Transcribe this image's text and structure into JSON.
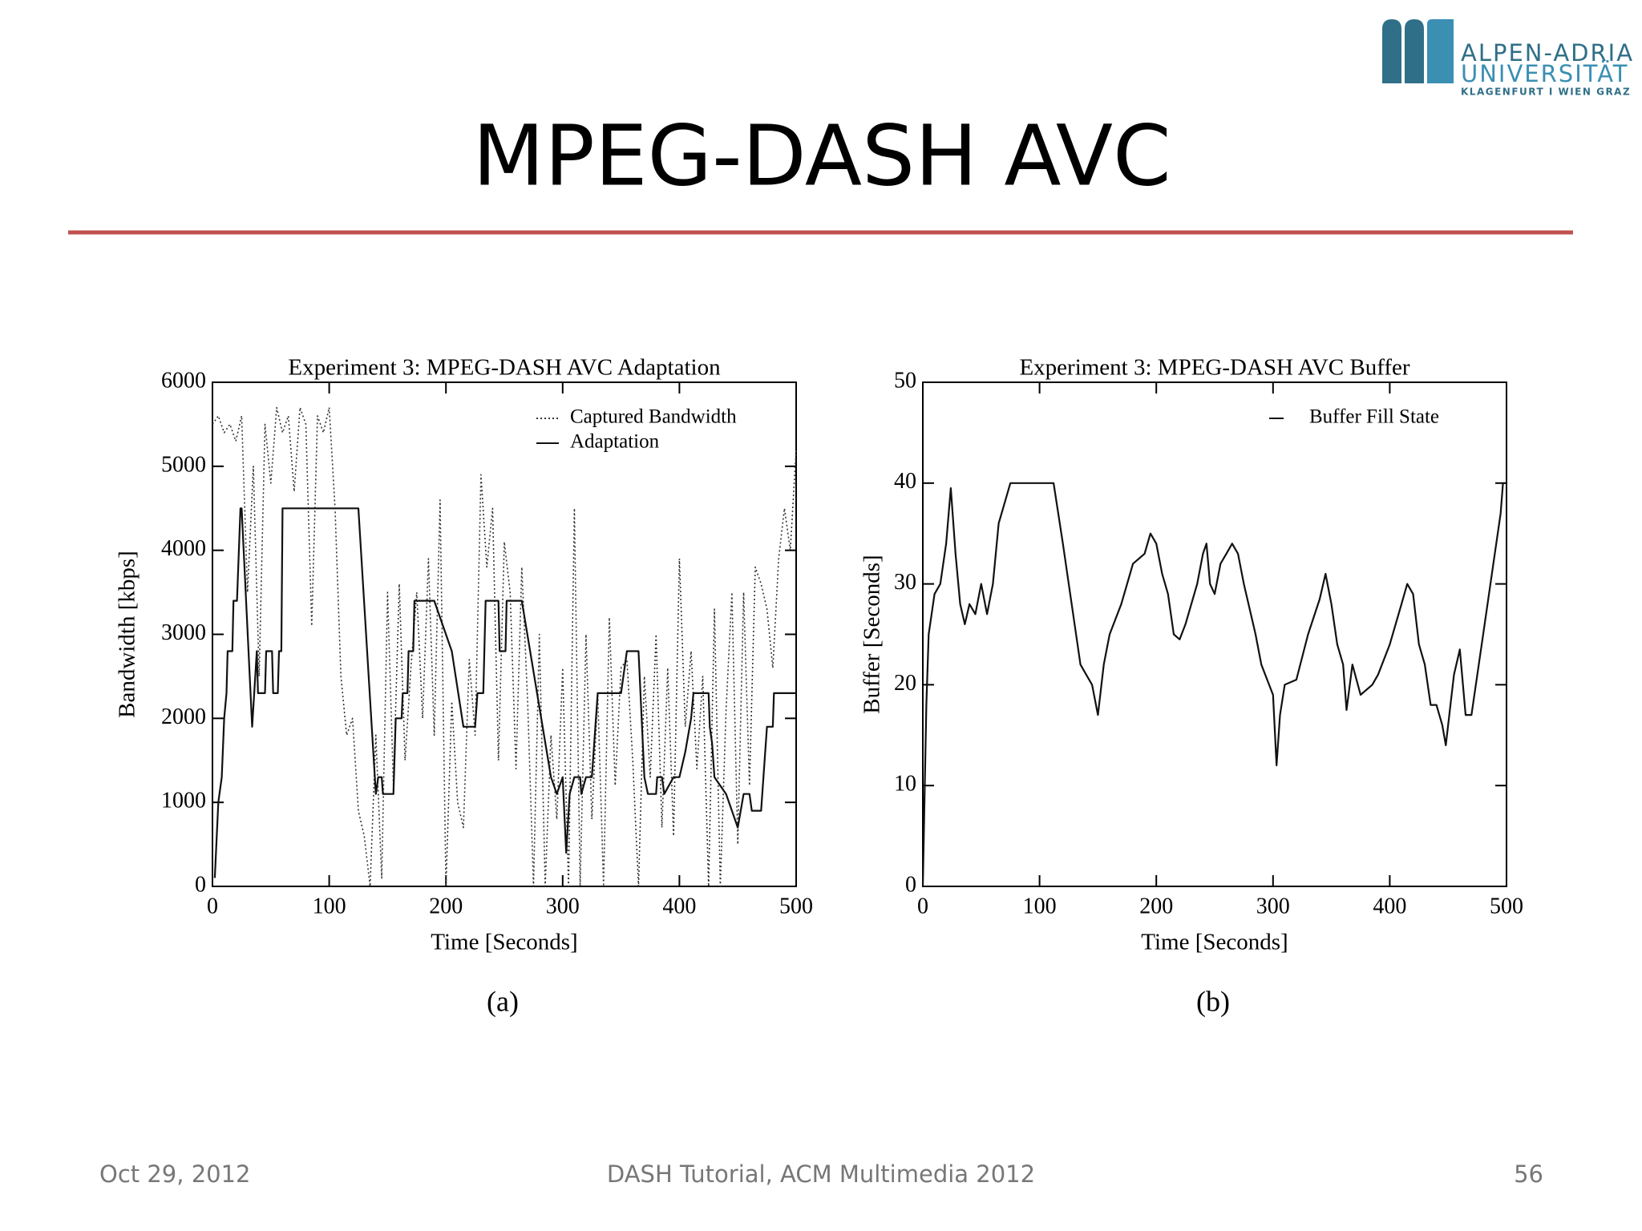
{
  "header": {
    "title": "MPEG-DASH AVC"
  },
  "logo": {
    "line1": "ALPEN-ADRIA",
    "line2": "UNIVERSITÄT",
    "line3": "KLAGENFURT I WIEN GRAZ"
  },
  "footer": {
    "date": "Oct 29, 2012",
    "center": "DASH Tutorial, ACM Multimedia 2012",
    "page": "56"
  },
  "chart_data": [
    {
      "type": "line",
      "title": "Experiment 3: MPEG-DASH AVC Adaptation",
      "xlabel": "Time [Seconds]",
      "ylabel": "Bandwidth [kbps]",
      "caption": "(a)",
      "xlim": [
        0,
        500
      ],
      "xticks": [
        0,
        100,
        200,
        300,
        400,
        500
      ],
      "ylim": [
        0,
        6000
      ],
      "yticks": [
        0,
        1000,
        2000,
        3000,
        4000,
        5000,
        6000
      ],
      "legend": "upper right",
      "series": [
        {
          "name": "Captured Bandwidth",
          "color": "#333333",
          "style": "dotted",
          "x": [
            0,
            5,
            10,
            15,
            20,
            25,
            30,
            35,
            40,
            45,
            50,
            55,
            60,
            65,
            70,
            75,
            80,
            85,
            90,
            95,
            100,
            105,
            110,
            115,
            120,
            125,
            130,
            135,
            140,
            145,
            150,
            155,
            160,
            165,
            170,
            175,
            180,
            185,
            190,
            195,
            200,
            205,
            210,
            215,
            220,
            225,
            230,
            235,
            240,
            245,
            250,
            255,
            260,
            265,
            270,
            275,
            280,
            285,
            290,
            295,
            300,
            305,
            310,
            315,
            320,
            325,
            330,
            335,
            340,
            345,
            350,
            355,
            360,
            365,
            370,
            375,
            380,
            385,
            390,
            395,
            400,
            405,
            410,
            415,
            420,
            425,
            430,
            435,
            440,
            445,
            450,
            455,
            460,
            465,
            470,
            475,
            480,
            485,
            490,
            495,
            500
          ],
          "values": [
            5500,
            5600,
            5400,
            5500,
            5300,
            5600,
            3500,
            5000,
            2500,
            5500,
            4800,
            5700,
            5400,
            5600,
            4700,
            5700,
            5500,
            3100,
            5600,
            5400,
            5700,
            4500,
            2500,
            1800,
            2000,
            900,
            600,
            0,
            1800,
            100,
            3500,
            1200,
            3600,
            1500,
            2600,
            3500,
            2000,
            3900,
            1800,
            4600,
            0,
            2200,
            1000,
            700,
            2700,
            1800,
            4900,
            3800,
            4500,
            1500,
            4100,
            3500,
            1400,
            3800,
            2200,
            0,
            3000,
            0,
            1800,
            800,
            2600,
            0,
            4500,
            0,
            3000,
            800,
            2300,
            0,
            3200,
            1200,
            2600,
            2700,
            1500,
            0,
            2500,
            1300,
            3000,
            700,
            2600,
            600,
            3900,
            1900,
            2800,
            1400,
            2500,
            0,
            3300,
            0,
            2100,
            3500,
            500,
            3500,
            1200,
            3800,
            3600,
            3300,
            2600,
            3900,
            4500,
            4000,
            5200
          ]
        },
        {
          "name": "Adaptation",
          "color": "#111111",
          "style": "solid",
          "x": [
            2,
            5,
            8,
            10,
            12,
            13,
            17,
            18,
            21,
            24,
            25,
            34,
            38,
            39,
            45,
            46,
            51,
            52,
            56,
            57,
            59,
            60,
            125,
            140,
            142,
            145,
            146,
            155,
            157,
            162,
            163,
            167,
            168,
            172,
            173,
            190,
            205,
            215,
            225,
            227,
            232,
            234,
            245,
            246,
            251,
            252,
            265,
            290,
            295,
            300,
            303,
            306,
            310,
            315,
            316,
            320,
            325,
            330,
            350,
            355,
            365,
            370,
            373,
            380,
            381,
            385,
            387,
            395,
            400,
            405,
            410,
            412,
            425,
            426,
            428,
            430,
            440,
            450,
            455,
            460,
            462,
            470,
            475,
            480,
            481,
            500
          ],
          "values": [
            100,
            1000,
            1300,
            2000,
            2300,
            2800,
            2800,
            3400,
            3400,
            4500,
            4500,
            1900,
            2800,
            2300,
            2300,
            2800,
            2800,
            2300,
            2300,
            2800,
            2800,
            4500,
            4500,
            1100,
            1300,
            1300,
            1100,
            1100,
            2000,
            2000,
            2300,
            2300,
            2800,
            2800,
            3400,
            3400,
            2800,
            1900,
            1900,
            2300,
            2300,
            3400,
            3400,
            2800,
            2800,
            3400,
            3400,
            1300,
            1100,
            1300,
            400,
            1100,
            1300,
            1300,
            1100,
            1300,
            1300,
            2300,
            2300,
            2800,
            2800,
            1300,
            1100,
            1100,
            1300,
            1300,
            1100,
            1300,
            1300,
            1600,
            2000,
            2300,
            2300,
            1900,
            1700,
            1300,
            1100,
            700,
            1100,
            1100,
            900,
            900,
            1900,
            1900,
            2300,
            2300
          ]
        }
      ]
    },
    {
      "type": "line",
      "title": "Experiment 3: MPEG-DASH AVC Buffer",
      "xlabel": "Time [Seconds]",
      "ylabel": "Buffer [Seconds]",
      "caption": "(b)",
      "xlim": [
        0,
        500
      ],
      "xticks": [
        0,
        100,
        200,
        300,
        400,
        500
      ],
      "ylim": [
        0,
        50
      ],
      "yticks": [
        0,
        10,
        20,
        30,
        40,
        50
      ],
      "legend": "upper right",
      "series": [
        {
          "name": "Buffer Fill State",
          "color": "#111111",
          "style": "solid",
          "x": [
            0,
            3,
            5,
            10,
            15,
            20,
            24,
            28,
            32,
            36,
            40,
            45,
            50,
            55,
            60,
            65,
            70,
            75,
            100,
            112,
            120,
            125,
            130,
            135,
            140,
            145,
            150,
            155,
            160,
            170,
            180,
            190,
            195,
            200,
            205,
            210,
            215,
            220,
            225,
            235,
            240,
            243,
            246,
            250,
            255,
            260,
            265,
            270,
            275,
            285,
            290,
            295,
            300,
            303,
            306,
            310,
            320,
            330,
            340,
            345,
            350,
            355,
            360,
            363,
            368,
            375,
            385,
            390,
            400,
            410,
            415,
            420,
            425,
            430,
            435,
            440,
            445,
            448,
            452,
            455,
            460,
            465,
            470,
            480,
            490,
            495,
            497,
            500
          ],
          "values": [
            0,
            18,
            25,
            29,
            30,
            34,
            39.5,
            33,
            28,
            26,
            28,
            27,
            30,
            27,
            30,
            36,
            38,
            40,
            40,
            40,
            34,
            30,
            26,
            22,
            21,
            20,
            17,
            22,
            25,
            28,
            32,
            33,
            35,
            34,
            31,
            29,
            25,
            24.5,
            26,
            30,
            33,
            34,
            30,
            29,
            32,
            33,
            34,
            33,
            30,
            25,
            22,
            20.5,
            19,
            12,
            17,
            20,
            20.5,
            25,
            28.5,
            31,
            28,
            24,
            22,
            17.5,
            22,
            19,
            20,
            21,
            24,
            28,
            30,
            29,
            24,
            22,
            18,
            18,
            16,
            14,
            18,
            21,
            23.5,
            17,
            17,
            25,
            33,
            37,
            40,
            40
          ]
        }
      ]
    }
  ]
}
